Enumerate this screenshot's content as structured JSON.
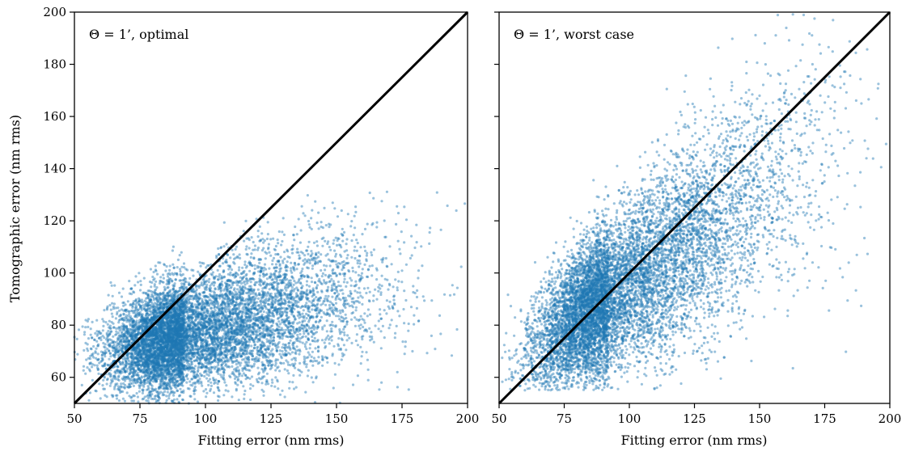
{
  "figure": {
    "ylabel": "Tomographic error (nm rms)",
    "point_color": "#1f77b4",
    "line_color": "#000000"
  },
  "chart_data": [
    {
      "type": "scatter",
      "annotation": "Θ = 1’, optimal",
      "xlabel": "Fitting error (nm rms)",
      "ylabel": "Tomographic error (nm rms)",
      "xlim": [
        50,
        200
      ],
      "ylim": [
        50,
        200
      ],
      "xticks": [
        50,
        75,
        100,
        125,
        150,
        175,
        200
      ],
      "yticks": [
        60,
        80,
        100,
        120,
        140,
        160,
        180,
        200
      ],
      "xtick_labels": [
        "50",
        "75",
        "100",
        "125",
        "150",
        "175",
        "200"
      ],
      "ytick_labels": [
        "60",
        "80",
        "100",
        "120",
        "140",
        "160",
        "180",
        "200"
      ],
      "reference_line": {
        "x": [
          50,
          200
        ],
        "y": [
          50,
          200
        ]
      },
      "cloud": {
        "approx_points": 9000,
        "x_center": 92,
        "x_spread_low": 14,
        "x_spread_high": 35,
        "y_at_x50": 67,
        "y_slope": 0.22,
        "y_spread_base": 8,
        "y_spread_slope": 0.07,
        "x_range": [
          50,
          200
        ],
        "y_range": [
          50,
          135
        ]
      },
      "grid": false,
      "legend": "none"
    },
    {
      "type": "scatter",
      "annotation": "Θ = 1’, worst case",
      "xlabel": "Fitting error (nm rms)",
      "ylabel": "",
      "xlim": [
        50,
        200
      ],
      "ylim": [
        50,
        200
      ],
      "xticks": [
        50,
        75,
        100,
        125,
        150,
        175,
        200
      ],
      "yticks": [
        60,
        80,
        100,
        120,
        140,
        160,
        180,
        200
      ],
      "xtick_labels": [
        "50",
        "75",
        "100",
        "125",
        "150",
        "175",
        "200"
      ],
      "ytick_labels": [],
      "reference_line": {
        "x": [
          50,
          200
        ],
        "y": [
          50,
          200
        ]
      },
      "cloud": {
        "approx_points": 9000,
        "x_center": 92,
        "x_spread_low": 14,
        "x_spread_high": 35,
        "y_at_x50": 62,
        "y_slope": 0.68,
        "y_spread_base": 9,
        "y_spread_slope": 0.14,
        "x_range": [
          50,
          200
        ],
        "y_range": [
          55,
          200
        ]
      },
      "grid": false,
      "legend": "none"
    }
  ]
}
